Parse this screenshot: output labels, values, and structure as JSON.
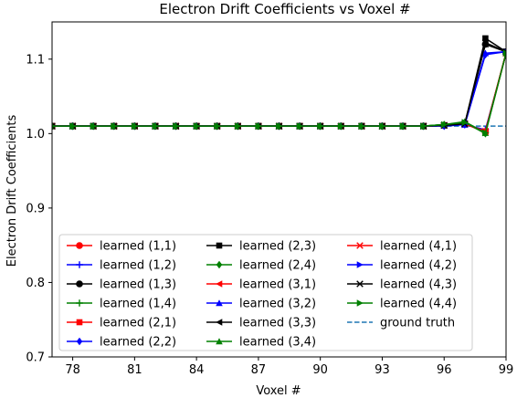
{
  "chart_data": {
    "type": "line",
    "title": "Electron Drift Coefficients vs Voxel #",
    "xlabel": "Voxel #",
    "ylabel": "Electron Drift Coefficients",
    "xlim": [
      77,
      99
    ],
    "ylim": [
      0.7,
      1.15
    ],
    "xticks": [
      78,
      81,
      84,
      87,
      90,
      93,
      96,
      99
    ],
    "yticks": [
      0.7,
      0.8,
      0.9,
      1.0,
      1.1
    ],
    "ytick_labels": [
      "0.7",
      "0.8",
      "0.9",
      "1.0",
      "1.1"
    ],
    "grid": false,
    "legend_placement": "lower-left",
    "x": [
      77,
      78,
      79,
      80,
      81,
      82,
      83,
      84,
      85,
      86,
      87,
      88,
      89,
      90,
      91,
      92,
      93,
      94,
      95,
      96,
      97,
      98,
      99
    ],
    "series": [
      {
        "name": "learned (1,1)",
        "color": "#ff0000",
        "marker": "circle",
        "values": [
          1.01,
          1.01,
          1.01,
          1.01,
          1.01,
          1.01,
          1.01,
          1.01,
          1.01,
          1.01,
          1.01,
          1.01,
          1.01,
          1.01,
          1.01,
          1.01,
          1.01,
          1.01,
          1.01,
          1.011,
          1.013,
          1.002,
          1.108
        ]
      },
      {
        "name": "learned (1,2)",
        "color": "#0000ff",
        "marker": "plus",
        "values": [
          1.01,
          1.01,
          1.01,
          1.01,
          1.01,
          1.01,
          1.01,
          1.01,
          1.01,
          1.01,
          1.01,
          1.01,
          1.01,
          1.01,
          1.01,
          1.01,
          1.01,
          1.01,
          1.01,
          1.011,
          1.012,
          1.005,
          1.107
        ]
      },
      {
        "name": "learned (1,3)",
        "color": "#000000",
        "marker": "circle",
        "values": [
          1.01,
          1.01,
          1.01,
          1.01,
          1.01,
          1.01,
          1.01,
          1.01,
          1.01,
          1.01,
          1.01,
          1.01,
          1.01,
          1.01,
          1.01,
          1.01,
          1.01,
          1.01,
          1.01,
          1.011,
          1.013,
          1.12,
          1.11
        ]
      },
      {
        "name": "learned (1,4)",
        "color": "#008000",
        "marker": "plus",
        "values": [
          1.01,
          1.01,
          1.01,
          1.01,
          1.01,
          1.01,
          1.01,
          1.01,
          1.01,
          1.01,
          1.01,
          1.01,
          1.01,
          1.01,
          1.01,
          1.01,
          1.01,
          1.01,
          1.01,
          1.012,
          1.014,
          1.002,
          1.108
        ]
      },
      {
        "name": "learned (2,1)",
        "color": "#ff0000",
        "marker": "square",
        "values": [
          1.01,
          1.01,
          1.01,
          1.01,
          1.01,
          1.01,
          1.01,
          1.01,
          1.01,
          1.01,
          1.01,
          1.01,
          1.01,
          1.01,
          1.01,
          1.01,
          1.01,
          1.01,
          1.01,
          1.011,
          1.013,
          1.003,
          1.108
        ]
      },
      {
        "name": "learned (2,2)",
        "color": "#0000ff",
        "marker": "diamond",
        "values": [
          1.01,
          1.01,
          1.01,
          1.01,
          1.01,
          1.01,
          1.01,
          1.01,
          1.01,
          1.01,
          1.01,
          1.01,
          1.01,
          1.01,
          1.01,
          1.01,
          1.01,
          1.01,
          1.01,
          1.01,
          1.012,
          1.106,
          1.11
        ]
      },
      {
        "name": "learned (2,3)",
        "color": "#000000",
        "marker": "square",
        "values": [
          1.01,
          1.01,
          1.01,
          1.01,
          1.01,
          1.01,
          1.01,
          1.01,
          1.01,
          1.01,
          1.01,
          1.01,
          1.01,
          1.01,
          1.01,
          1.01,
          1.01,
          1.01,
          1.01,
          1.011,
          1.013,
          1.128,
          1.11
        ]
      },
      {
        "name": "learned (2,4)",
        "color": "#008000",
        "marker": "diamond",
        "values": [
          1.01,
          1.01,
          1.01,
          1.01,
          1.01,
          1.01,
          1.01,
          1.01,
          1.01,
          1.01,
          1.01,
          1.01,
          1.01,
          1.01,
          1.01,
          1.01,
          1.01,
          1.01,
          1.01,
          1.012,
          1.015,
          1.0,
          1.108
        ]
      },
      {
        "name": "learned (3,1)",
        "color": "#ff0000",
        "marker": "triangle-left",
        "values": [
          1.01,
          1.01,
          1.01,
          1.01,
          1.01,
          1.01,
          1.01,
          1.01,
          1.01,
          1.01,
          1.01,
          1.01,
          1.01,
          1.01,
          1.01,
          1.01,
          1.01,
          1.01,
          1.01,
          1.011,
          1.013,
          1.003,
          1.108
        ]
      },
      {
        "name": "learned (3,2)",
        "color": "#0000ff",
        "marker": "triangle-up",
        "values": [
          1.01,
          1.01,
          1.01,
          1.01,
          1.01,
          1.01,
          1.01,
          1.01,
          1.01,
          1.01,
          1.01,
          1.01,
          1.01,
          1.01,
          1.01,
          1.01,
          1.01,
          1.01,
          1.01,
          1.011,
          1.012,
          1.108,
          1.11
        ]
      },
      {
        "name": "learned (3,3)",
        "color": "#000000",
        "marker": "triangle-left",
        "values": [
          1.01,
          1.01,
          1.01,
          1.01,
          1.01,
          1.01,
          1.01,
          1.01,
          1.01,
          1.01,
          1.01,
          1.01,
          1.01,
          1.01,
          1.01,
          1.01,
          1.01,
          1.01,
          1.01,
          1.011,
          1.013,
          1.12,
          1.11
        ]
      },
      {
        "name": "learned (3,4)",
        "color": "#008000",
        "marker": "triangle-up",
        "values": [
          1.01,
          1.01,
          1.01,
          1.01,
          1.01,
          1.01,
          1.01,
          1.01,
          1.01,
          1.01,
          1.01,
          1.01,
          1.01,
          1.01,
          1.01,
          1.01,
          1.01,
          1.01,
          1.01,
          1.012,
          1.016,
          1.001,
          1.108
        ]
      },
      {
        "name": "learned (4,1)",
        "color": "#ff0000",
        "marker": "x",
        "values": [
          1.01,
          1.01,
          1.01,
          1.01,
          1.01,
          1.01,
          1.01,
          1.01,
          1.01,
          1.01,
          1.01,
          1.01,
          1.01,
          1.01,
          1.01,
          1.01,
          1.01,
          1.01,
          1.01,
          1.011,
          1.013,
          1.003,
          1.108
        ]
      },
      {
        "name": "learned (4,2)",
        "color": "#0000ff",
        "marker": "triangle-right",
        "values": [
          1.01,
          1.01,
          1.01,
          1.01,
          1.01,
          1.01,
          1.01,
          1.01,
          1.01,
          1.01,
          1.01,
          1.01,
          1.01,
          1.01,
          1.01,
          1.01,
          1.01,
          1.01,
          1.01,
          1.011,
          1.012,
          1.107,
          1.11
        ]
      },
      {
        "name": "learned (4,3)",
        "color": "#000000",
        "marker": "x",
        "values": [
          1.01,
          1.01,
          1.01,
          1.01,
          1.01,
          1.01,
          1.01,
          1.01,
          1.01,
          1.01,
          1.01,
          1.01,
          1.01,
          1.01,
          1.01,
          1.01,
          1.01,
          1.01,
          1.01,
          1.011,
          1.013,
          1.122,
          1.11
        ]
      },
      {
        "name": "learned (4,4)",
        "color": "#008000",
        "marker": "triangle-right",
        "values": [
          1.01,
          1.01,
          1.01,
          1.01,
          1.01,
          1.01,
          1.01,
          1.01,
          1.01,
          1.01,
          1.01,
          1.01,
          1.01,
          1.01,
          1.01,
          1.01,
          1.01,
          1.01,
          1.01,
          1.012,
          1.015,
          1.001,
          1.108
        ]
      }
    ],
    "reference_line": {
      "name": "ground truth",
      "y": 1.01,
      "color": "#1f77b4",
      "style": "dashed"
    }
  }
}
